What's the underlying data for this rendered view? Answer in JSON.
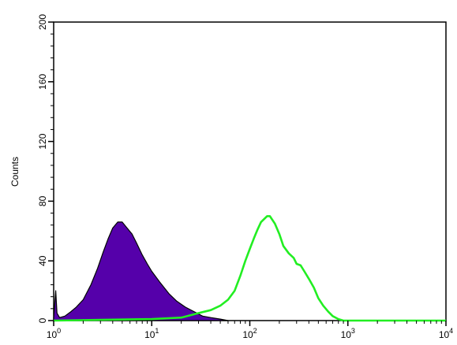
{
  "chart_data": {
    "type": "area",
    "title": "",
    "xlabel": "",
    "ylabel": "Counts",
    "xscale": "log",
    "xlim": [
      1,
      10000
    ],
    "ylim": [
      0,
      200
    ],
    "grid": false,
    "legend": "none",
    "x_ticks": [
      {
        "value": 1,
        "base": "10",
        "exp": "0"
      },
      {
        "value": 10,
        "base": "10",
        "exp": "1"
      },
      {
        "value": 100,
        "base": "10",
        "exp": "2"
      },
      {
        "value": 1000,
        "base": "10",
        "exp": "3"
      },
      {
        "value": 10000,
        "base": "10",
        "exp": "4"
      }
    ],
    "y_ticks": [
      0,
      40,
      80,
      120,
      160,
      200
    ],
    "y_tick_labels": [
      "0",
      "40",
      "80",
      "120",
      "160",
      "200"
    ],
    "series": [
      {
        "style": "filled",
        "color": "#5500aa",
        "edge_color": "#000000",
        "points": [
          [
            1.0,
            2
          ],
          [
            1.05,
            20
          ],
          [
            1.08,
            5
          ],
          [
            1.15,
            2
          ],
          [
            1.3,
            3
          ],
          [
            1.5,
            6
          ],
          [
            1.7,
            9
          ],
          [
            2.0,
            14
          ],
          [
            2.4,
            24
          ],
          [
            2.8,
            35
          ],
          [
            3.2,
            46
          ],
          [
            3.6,
            55
          ],
          [
            4.0,
            62
          ],
          [
            4.5,
            66
          ],
          [
            5.0,
            66
          ],
          [
            5.6,
            62
          ],
          [
            6.3,
            58
          ],
          [
            7.0,
            52
          ],
          [
            8.0,
            44
          ],
          [
            9.0,
            38
          ],
          [
            10.0,
            33
          ],
          [
            12.0,
            26
          ],
          [
            15.0,
            18
          ],
          [
            18.0,
            13
          ],
          [
            22.0,
            9
          ],
          [
            27.0,
            6
          ],
          [
            33.0,
            3
          ],
          [
            40.0,
            2
          ],
          [
            50.0,
            1
          ],
          [
            60.0,
            0
          ]
        ]
      },
      {
        "style": "outline",
        "color": "#22ee22",
        "points": [
          [
            1.0,
            0
          ],
          [
            10.0,
            1
          ],
          [
            20.0,
            2
          ],
          [
            30.0,
            5
          ],
          [
            40.0,
            7
          ],
          [
            50.0,
            10
          ],
          [
            60.0,
            14
          ],
          [
            70.0,
            20
          ],
          [
            80.0,
            30
          ],
          [
            90.0,
            40
          ],
          [
            100.0,
            48
          ],
          [
            110.0,
            55
          ],
          [
            120.0,
            61
          ],
          [
            130.0,
            66
          ],
          [
            150.0,
            70
          ],
          [
            160.0,
            70
          ],
          [
            180.0,
            65
          ],
          [
            200.0,
            58
          ],
          [
            220.0,
            50
          ],
          [
            250.0,
            45
          ],
          [
            280.0,
            42
          ],
          [
            300.0,
            38
          ],
          [
            330.0,
            37
          ],
          [
            360.0,
            33
          ],
          [
            400.0,
            28
          ],
          [
            450.0,
            22
          ],
          [
            500.0,
            15
          ],
          [
            560.0,
            10
          ],
          [
            630.0,
            6
          ],
          [
            700.0,
            3
          ],
          [
            800.0,
            1
          ],
          [
            900.0,
            0
          ],
          [
            10000.0,
            0
          ]
        ]
      }
    ]
  }
}
